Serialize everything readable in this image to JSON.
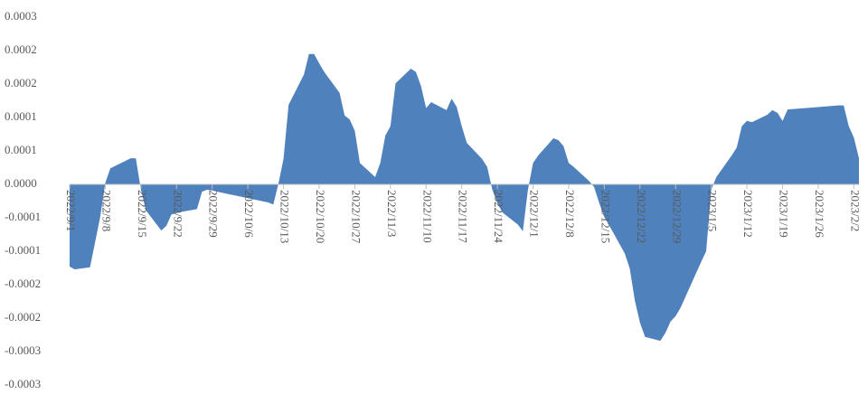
{
  "chart_data": {
    "type": "area",
    "color": "#4f81bd",
    "x": [
      "2022/9/1",
      "2022/9/2",
      "2022/9/5",
      "2022/9/7",
      "2022/9/8",
      "2022/9/9",
      "2022/9/13",
      "2022/9/14",
      "2022/9/15",
      "2022/9/16",
      "2022/9/19",
      "2022/9/20",
      "2022/9/21",
      "2022/9/22",
      "2022/9/23",
      "2022/9/26",
      "2022/9/27",
      "2022/9/28",
      "2022/9/29",
      "2022/9/30",
      "2022/10/10",
      "2022/10/11",
      "2022/10/12",
      "2022/10/13",
      "2022/10/14",
      "2022/10/17",
      "2022/10/18",
      "2022/10/19",
      "2022/10/20",
      "2022/10/21",
      "2022/10/24",
      "2022/10/25",
      "2022/10/26",
      "2022/10/27",
      "2022/10/28",
      "2022/10/31",
      "2022/11/1",
      "2022/11/2",
      "2022/11/3",
      "2022/11/4",
      "2022/11/7",
      "2022/11/8",
      "2022/11/9",
      "2022/11/10",
      "2022/11/11",
      "2022/11/14",
      "2022/11/15",
      "2022/11/16",
      "2022/11/17",
      "2022/11/18",
      "2022/11/21",
      "2022/11/22",
      "2022/11/23",
      "2022/11/24",
      "2022/11/25",
      "2022/11/28",
      "2022/11/29",
      "2022/11/30",
      "2022/12/1",
      "2022/12/2",
      "2022/12/5",
      "2022/12/6",
      "2022/12/7",
      "2022/12/8",
      "2022/12/9",
      "2022/12/12",
      "2022/12/13",
      "2022/12/14",
      "2022/12/15",
      "2022/12/16",
      "2022/12/19",
      "2022/12/20",
      "2022/12/21",
      "2022/12/22",
      "2022/12/23",
      "2022/12/26",
      "2022/12/27",
      "2022/12/28",
      "2022/12/29",
      "2022/12/30",
      "2023/1/3",
      "2023/1/4",
      "2023/1/5",
      "2023/1/6",
      "2023/1/9",
      "2023/1/10",
      "2023/1/11",
      "2023/1/12",
      "2023/1/13",
      "2023/1/16",
      "2023/1/17",
      "2023/1/18",
      "2023/1/19",
      "2023/1/20",
      "2023/1/30",
      "2023/1/31",
      "2023/2/1",
      "2023/2/2",
      "2023/2/3"
    ],
    "values": [
      -0.000123,
      -0.000127,
      -0.000124,
      -4.9e-05,
      2e-06,
      2.4e-05,
      3.9e-05,
      3.9e-05,
      -8e-06,
      -3.9e-05,
      -6.9e-05,
      -6.2e-05,
      -4.5e-05,
      -4.3e-05,
      -4.1e-05,
      -3.7e-05,
      -1.1e-05,
      -8e-06,
      -9e-06,
      -1.1e-05,
      -2.7e-05,
      -3e-05,
      1e-06,
      3.8e-05,
      0.000119,
      0.000164,
      0.000195,
      0.000195,
      0.000181,
      0.000168,
      0.000137,
      0.000103,
      9.7e-05,
      8e-05,
      3.2e-05,
      1.1e-05,
      3.2e-05,
      7.3e-05,
      8.7e-05,
      0.000151,
      0.000173,
      0.000168,
      0.000147,
      0.000114,
      0.000123,
      0.000111,
      0.000128,
      0.000116,
      8.7e-05,
      6.2e-05,
      3.8e-05,
      2.6e-05,
      -8e-06,
      -2.8e-05,
      -4.2e-05,
      -6e-05,
      -7e-05,
      -8e-06,
      3.2e-05,
      4.3e-05,
      6.9e-05,
      6.6e-05,
      5.7e-05,
      3.2e-05,
      2.6e-05,
      5e-06,
      -4e-06,
      -2.8e-05,
      -4.9e-05,
      -6.2e-05,
      -0.000103,
      -0.000126,
      -0.000174,
      -0.000207,
      -0.000228,
      -0.000234,
      -0.000222,
      -0.000205,
      -0.000197,
      -0.000184,
      -0.000116,
      -0.0001,
      -8e-06,
      1.1e-05,
      4.3e-05,
      5.5e-05,
      8.7e-05,
      9.5e-05,
      9.3e-05,
      0.000104,
      0.000111,
      0.000107,
      9.5e-05,
      0.000112,
      0.000118,
      0.000118,
      8.7e-05,
      7e-05,
      3.9e-05
    ],
    "xlim": [
      "2022/9/1",
      "2023/2/3"
    ],
    "xticks": [
      "2022/9/1",
      "2022/9/8",
      "2022/9/15",
      "2022/9/22",
      "2022/9/29",
      "2022/10/6",
      "2022/10/13",
      "2022/10/20",
      "2022/10/27",
      "2022/11/3",
      "2022/11/10",
      "2022/11/17",
      "2022/11/24",
      "2022/12/1",
      "2022/12/8",
      "2022/12/15",
      "2022/12/22",
      "2022/12/29",
      "2023/1/5",
      "2023/1/12",
      "2023/1/19",
      "2023/1/26",
      "2023/2/2"
    ],
    "ylim": [
      -0.0003,
      0.00025
    ],
    "yticks": [
      {
        "value": 0.00025,
        "label": "0.0003"
      },
      0.0002,
      {
        "value": 0.00015,
        "label": "0.0002"
      },
      0.0001,
      {
        "value": 5e-05,
        "label": "0.0001"
      },
      {
        "value": 0,
        "label": "0.0000"
      },
      {
        "value": -5e-05,
        "label": "-0.0001"
      },
      -0.0001,
      {
        "value": -0.00015,
        "label": "-0.0002"
      },
      -0.0002,
      {
        "value": -0.00025,
        "label": "-0.0003"
      },
      -0.0003
    ]
  }
}
